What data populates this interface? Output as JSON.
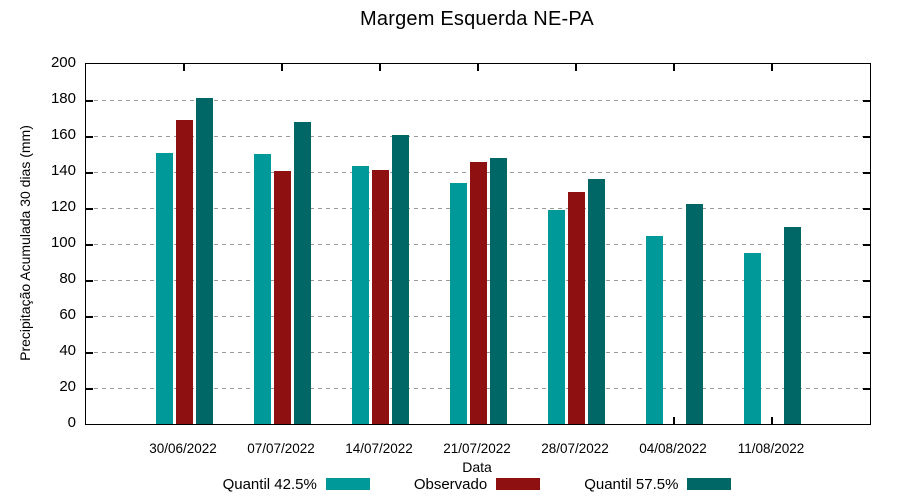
{
  "title": "Margem Esquerda NE-PA",
  "chart_data": {
    "type": "bar",
    "title": "Margem Esquerda NE-PA",
    "xlabel": "Data",
    "ylabel": "Precipitação Acumulada 30 dias (mm)",
    "ylim": [
      0,
      200
    ],
    "ytick_step": 20,
    "yticks": [
      0,
      20,
      40,
      60,
      80,
      100,
      120,
      140,
      160,
      180,
      200
    ],
    "grid": true,
    "grid_color": "#9a9a9a",
    "legend_position": "bottom",
    "categories": [
      "30/06/2022",
      "07/07/2022",
      "14/07/2022",
      "21/07/2022",
      "28/07/2022",
      "04/08/2022",
      "11/08/2022"
    ],
    "series": [
      {
        "name": "Quantil 42.5%",
        "color": "#009999",
        "values": [
          150.5,
          150,
          143.5,
          134,
          119,
          104.5,
          95
        ]
      },
      {
        "name": "Observado",
        "color": "#8f1010",
        "values": [
          169,
          140.5,
          141,
          145.5,
          129,
          null,
          null
        ]
      },
      {
        "name": "Quantil 57.5%",
        "color": "#006666",
        "values": [
          181,
          168,
          160.5,
          148,
          136,
          122.5,
          109.5
        ]
      }
    ]
  }
}
